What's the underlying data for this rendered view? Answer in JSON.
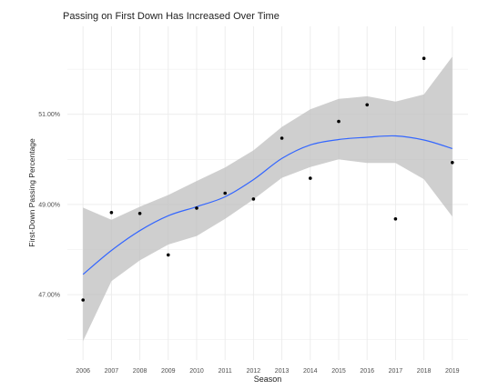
{
  "chart_data": {
    "type": "scatter",
    "title": "Passing on First Down Has Increased Over Time",
    "xlabel": "Season",
    "ylabel": "First-Down Passing Percentage",
    "x_ticks": [
      "2006",
      "2007",
      "2008",
      "2009",
      "2010",
      "2011",
      "2012",
      "2013",
      "2014",
      "2015",
      "2016",
      "2017",
      "2018",
      "2019"
    ],
    "y_ticks": [
      "47.00%",
      "49.00%",
      "51.00%"
    ],
    "xlim": [
      2005.45,
      2019.55
    ],
    "ylim": [
      45.55,
      52.95
    ],
    "grid": true,
    "legend": "none",
    "points": [
      {
        "x": 2006,
        "y": 46.88
      },
      {
        "x": 2007,
        "y": 48.82
      },
      {
        "x": 2008,
        "y": 48.8
      },
      {
        "x": 2009,
        "y": 47.88
      },
      {
        "x": 2010,
        "y": 48.92
      },
      {
        "x": 2011,
        "y": 49.25
      },
      {
        "x": 2012,
        "y": 49.12
      },
      {
        "x": 2013,
        "y": 50.47
      },
      {
        "x": 2014,
        "y": 49.58
      },
      {
        "x": 2015,
        "y": 50.84
      },
      {
        "x": 2016,
        "y": 51.21
      },
      {
        "x": 2017,
        "y": 48.68
      },
      {
        "x": 2018,
        "y": 52.24
      },
      {
        "x": 2019,
        "y": 49.93
      }
    ],
    "smooth": {
      "x": [
        2006,
        2007,
        2008,
        2009,
        2010,
        2011,
        2012,
        2013,
        2014,
        2015,
        2016,
        2017,
        2018,
        2019
      ],
      "y": [
        47.45,
        47.98,
        48.42,
        48.75,
        48.95,
        49.17,
        49.55,
        50.02,
        50.32,
        50.44,
        50.49,
        50.52,
        50.43,
        50.24
      ],
      "lower": [
        45.97,
        47.3,
        47.76,
        48.11,
        48.3,
        48.68,
        49.11,
        49.59,
        49.83,
        50.0,
        49.92,
        49.92,
        49.56,
        48.73
      ],
      "upper": [
        48.93,
        48.66,
        48.95,
        49.21,
        49.52,
        49.82,
        50.2,
        50.72,
        51.11,
        51.34,
        51.4,
        51.28,
        51.44,
        52.28
      ]
    },
    "colors": {
      "points": "#000000",
      "smooth_line": "#3366ff",
      "confidence_band": "#bfbfbf",
      "grid": "#ebebeb",
      "text": "#222222"
    }
  }
}
